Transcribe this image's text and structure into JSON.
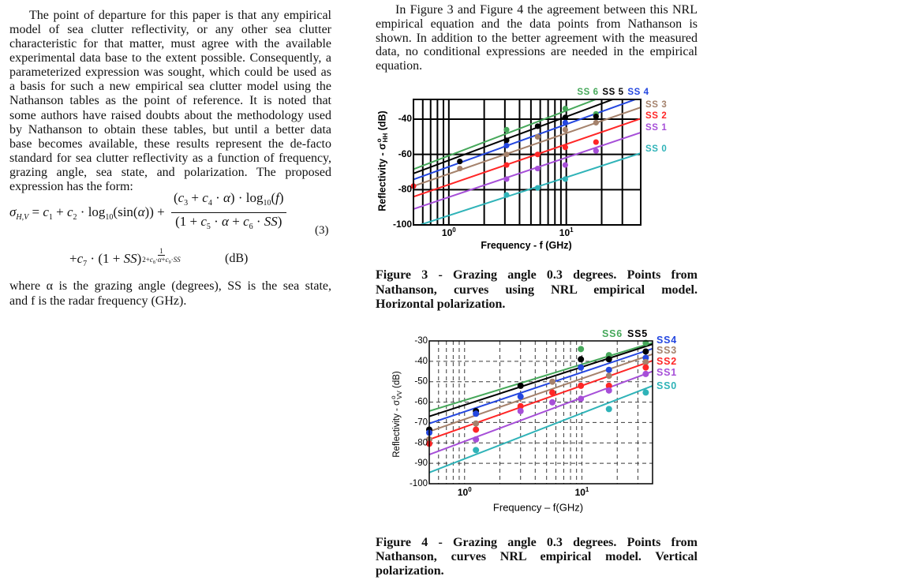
{
  "left_column": {
    "paragraph1": [
      "The point of departure for this paper is that any empirical",
      "model of sea clutter reflectivity, or any other sea clutter",
      "characteristic for that matter, must agree with the available",
      "experimental data base to the extent possible. Consequently, a",
      "parameterized expression was sought, which could be used as",
      "a basis for such a new empirical sea clutter model using the",
      "Nathanson tables as the point of reference. It is noted that",
      "some authors have raised doubts about the methodology used",
      "by Nathanson to obtain these tables, but until a better data",
      "base becomes available, these results represent the de-facto",
      "standard for sea clutter reflectivity as a function of frequency,",
      "grazing angle, sea state, and polarization. The proposed",
      "expression has the form:"
    ],
    "equation": {
      "sigma": "σ",
      "sigma_sub": "H,V",
      "equals": " = ",
      "c": "c",
      "plus": " + ",
      "dot": " · ",
      "log": "log",
      "log_sub": "10",
      "sin_open": "(sin(",
      "alpha": "α",
      "sin_close": "))",
      "open": "(",
      "close": ")",
      "f": "f",
      "one_plus": "(1 + ",
      "SS": "SS",
      "one": "1",
      "two_plus": "2+",
      "small_dot": "·",
      "small_plus": "+",
      "sub1": "1",
      "sub2": "2",
      "sub3": "3",
      "sub4": "4",
      "sub5": "5",
      "sub6": "6",
      "sub7": "7",
      "sub8": "8",
      "sub9": "9",
      "plus_lead": "+",
      "unit": "(dB)",
      "number": "(3)"
    },
    "paragraph2": [
      "where α is the grazing angle (degrees), SS is the sea state,",
      "and f is the radar frequency (GHz)."
    ]
  },
  "right_column": {
    "paragraph1": [
      "In Figure 3 and Figure 4 the agreement between this NRL",
      "empirical equation and the data points from Nathanson is",
      "shown. In addition to the better agreement with the measured",
      "data, no conditional expressions are needed in the empirical",
      "equation."
    ],
    "figure3_caption": [
      "Figure 3 - Grazing angle 0.3 degrees. Points from",
      "Nathanson, curves using NRL empirical model.",
      "Horizontal polarization."
    ],
    "figure4_caption": [
      "Figure 4 - Grazing angle 0.3 degrees. Points from",
      "Nathanson, curves NRL empirical model. Vertical",
      "polarization."
    ]
  },
  "chart_data": [
    {
      "type": "line",
      "title": "Figure 3 - Grazing angle 0.3 degrees. Points from Nathanson, curves using NRL empirical model. Horizontal polarization.",
      "xlabel": "Frequency - f (GHz)",
      "ylabel": "Reflectivity - σ°HH (dB)",
      "ylabel_parts": {
        "pre": "Reflectivity - σ",
        "sup": "o",
        "sub": "HH",
        "post": " (dB)"
      },
      "xscale": "log",
      "xlim": [
        0.5,
        43
      ],
      "ylim": [
        -100,
        -28.8
      ],
      "xticks": [
        {
          "value": 1,
          "base": "10",
          "exp": "0"
        },
        {
          "value": 10,
          "base": "10",
          "exp": "1"
        }
      ],
      "yticks": [
        -40,
        -60,
        -80,
        -100
      ],
      "grid": {
        "on": true,
        "style": "solid",
        "x": [
          0.6,
          0.7,
          0.8,
          0.9,
          1,
          2,
          3,
          4,
          5,
          6,
          7,
          8,
          9,
          10,
          20,
          30
        ],
        "y": [
          -40,
          -60,
          -80
        ]
      },
      "legend_position": "top and right, outside plot",
      "series": [
        {
          "name": "SS 6",
          "color": "#46a85a",
          "line": {
            "x": [
              0.5,
              43
            ],
            "y": [
              -68.4,
              -19.0
            ]
          },
          "points": [
            [
              3.1,
              -46
            ],
            [
              9.8,
              -34
            ],
            [
              17.9,
              -37
            ]
          ]
        },
        {
          "name": "SS 5",
          "color": "#000000",
          "line": {
            "x": [
              0.5,
              43
            ],
            "y": [
              -70.8,
              -22.9
            ]
          },
          "points": [
            [
              1.24,
              -64
            ],
            [
              3.1,
              -52
            ],
            [
              5.7,
              -44
            ],
            [
              9.8,
              -39
            ],
            [
              17.9,
              -38.5
            ]
          ]
        },
        {
          "name": "SS 4",
          "color": "#2447e0",
          "line": {
            "x": [
              0.5,
              43
            ],
            "y": [
              -74.2,
              -27.7
            ]
          },
          "points": [
            [
              3.1,
              -55
            ],
            [
              9.8,
              -42
            ]
          ]
        },
        {
          "name": "SS 3",
          "color": "#a5826c",
          "line": {
            "x": [
              0.5,
              43
            ],
            "y": [
              -78.0,
              -33.3
            ]
          },
          "points": [
            [
              1.24,
              -68
            ],
            [
              3.1,
              -60
            ],
            [
              5.7,
              -50
            ],
            [
              9.8,
              -46
            ],
            [
              17.9,
              -42
            ]
          ]
        },
        {
          "name": "SS 2",
          "color": "#ff2626",
          "line": {
            "x": [
              0.5,
              43
            ],
            "y": [
              -84.0,
              -39.7
            ]
          },
          "points": [
            [
              0.5,
              -78
            ],
            [
              3.1,
              -66
            ],
            [
              5.7,
              -60
            ],
            [
              9.8,
              -56
            ],
            [
              17.9,
              -53
            ]
          ]
        },
        {
          "name": "SS 1",
          "color": "#a64fd8",
          "line": {
            "x": [
              0.5,
              43
            ],
            "y": [
              -91.0,
              -47.6
            ]
          },
          "points": [
            [
              3.1,
              -74
            ],
            [
              5.7,
              -68
            ],
            [
              9.8,
              -66
            ],
            [
              17.9,
              -58
            ]
          ]
        },
        {
          "name": "SS 0",
          "color": "#2fb3b8",
          "line": {
            "x": [
              0.5,
              43
            ],
            "y": [
              -101.2,
              -59.3
            ]
          },
          "points": [
            [
              3.1,
              -83
            ],
            [
              5.7,
              -79
            ],
            [
              9.8,
              -74
            ]
          ]
        }
      ]
    },
    {
      "type": "line",
      "title": "Figure 4 - Grazing angle 0.3 degrees. Points from Nathanson, curves NRL empirical model. Vertical polarization.",
      "xlabel": "Frequency – f(GHz)",
      "ylabel": "Reflectivity - σ°VV (dB)",
      "ylabel_parts": {
        "pre": "Reflectivity - σ",
        "sup": "o",
        "sub": "VV",
        "post": " (dB)"
      },
      "xscale": "log",
      "xlim": [
        0.5,
        40
      ],
      "ylim": [
        -100,
        -30
      ],
      "xticks": [
        {
          "value": 1,
          "base": "10",
          "exp": "0"
        },
        {
          "value": 10,
          "base": "10",
          "exp": "1"
        }
      ],
      "yticks": [
        -30,
        -40,
        -50,
        -60,
        -70,
        -80,
        -90,
        -100
      ],
      "grid": {
        "on": true,
        "style": "dashed",
        "x": [
          0.6,
          0.7,
          0.8,
          0.9,
          1,
          2,
          3,
          4,
          5,
          6,
          7,
          8,
          9,
          10,
          20,
          30
        ],
        "y": [
          -40,
          -50,
          -60,
          -70,
          -80,
          -90
        ]
      },
      "legend_position": "top and right, outside plot",
      "series": [
        {
          "name": "SS6",
          "color": "#46a85a",
          "line": {
            "x": [
              0.5,
              40
            ],
            "y": [
              -64.4,
              -30.9
            ]
          },
          "points": [
            [
              9.8,
              -34
            ],
            [
              17,
              -37
            ],
            [
              35,
              -31
            ]
          ]
        },
        {
          "name": "SS5",
          "color": "#000000",
          "line": {
            "x": [
              0.5,
              40
            ],
            "y": [
              -67.0,
              -31.6
            ]
          },
          "points": [
            [
              0.5,
              -73.5
            ],
            [
              1.25,
              -64.4
            ],
            [
              3.0,
              -52
            ],
            [
              9.8,
              -39
            ],
            [
              17,
              -39
            ],
            [
              35,
              -35.2
            ]
          ]
        },
        {
          "name": "SS4",
          "color": "#2447e0",
          "line": {
            "x": [
              0.5,
              40
            ],
            "y": [
              -70.5,
              -33.8
            ]
          },
          "points": [
            [
              0.5,
              -75
            ],
            [
              1.25,
              -65.7
            ],
            [
              3.0,
              -57.3
            ],
            [
              9.8,
              -43
            ],
            [
              17,
              -44.2
            ],
            [
              35,
              -38.3
            ]
          ]
        },
        {
          "name": "SS3",
          "color": "#a5826c",
          "line": {
            "x": [
              0.5,
              40
            ],
            "y": [
              -74.4,
              -36.5
            ]
          },
          "points": [
            [
              0.5,
              -78.3
            ],
            [
              1.25,
              -70.5
            ],
            [
              5.6,
              -50
            ],
            [
              17,
              -47.1
            ],
            [
              35,
              -40.4
            ]
          ]
        },
        {
          "name": "SS2",
          "color": "#ff2626",
          "line": {
            "x": [
              0.5,
              40
            ],
            "y": [
              -78.3,
              -39.7
            ]
          },
          "points": [
            [
              0.5,
              -80.4
            ],
            [
              1.25,
              -73.5
            ],
            [
              3.0,
              -62
            ],
            [
              5.6,
              -55.3
            ],
            [
              9.8,
              -52
            ],
            [
              17,
              -52
            ],
            [
              35,
              -43
            ]
          ]
        },
        {
          "name": "SS1",
          "color": "#a64fd8",
          "line": {
            "x": [
              0.5,
              40
            ],
            "y": [
              -85.7,
              -44.9
            ]
          },
          "points": [
            [
              1.25,
              -78.3
            ],
            [
              3.0,
              -64.4
            ],
            [
              5.6,
              -60.1
            ],
            [
              9.8,
              -58.4
            ],
            [
              17,
              -54.3
            ],
            [
              35,
              -46.2
            ]
          ]
        },
        {
          "name": "SS0",
          "color": "#2fb3b8",
          "line": {
            "x": [
              0.5,
              40
            ],
            "y": [
              -94.5,
              -52.0
            ]
          },
          "points": [
            [
              1.25,
              -83.5
            ],
            [
              17,
              -63.4
            ],
            [
              35,
              -55.3
            ]
          ]
        }
      ]
    }
  ]
}
